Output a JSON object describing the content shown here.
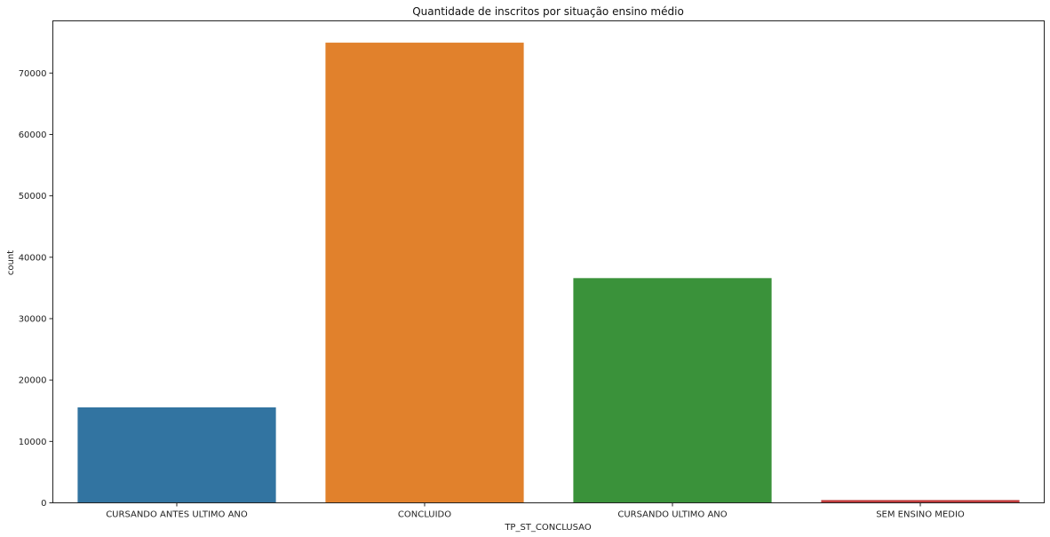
{
  "chart_data": {
    "type": "bar",
    "title": "Quantidade de inscritos por situação ensino médio",
    "xlabel": "TP_ST_CONCLUSAO",
    "ylabel": "count",
    "categories": [
      "CURSANDO ANTES ULTIMO ANO",
      "CONCLUIDO",
      "CURSANDO ULTIMO ANO",
      "SEM ENSINO MEDIO"
    ],
    "values": [
      15550,
      74950,
      36600,
      450
    ],
    "colors": [
      "#3274a1",
      "#e1812c",
      "#3a923a",
      "#c03d3e"
    ],
    "ylim": [
      0,
      78500
    ],
    "yticks": [
      0,
      10000,
      20000,
      30000,
      40000,
      50000,
      60000,
      70000
    ],
    "grid": false,
    "legend": "none"
  }
}
